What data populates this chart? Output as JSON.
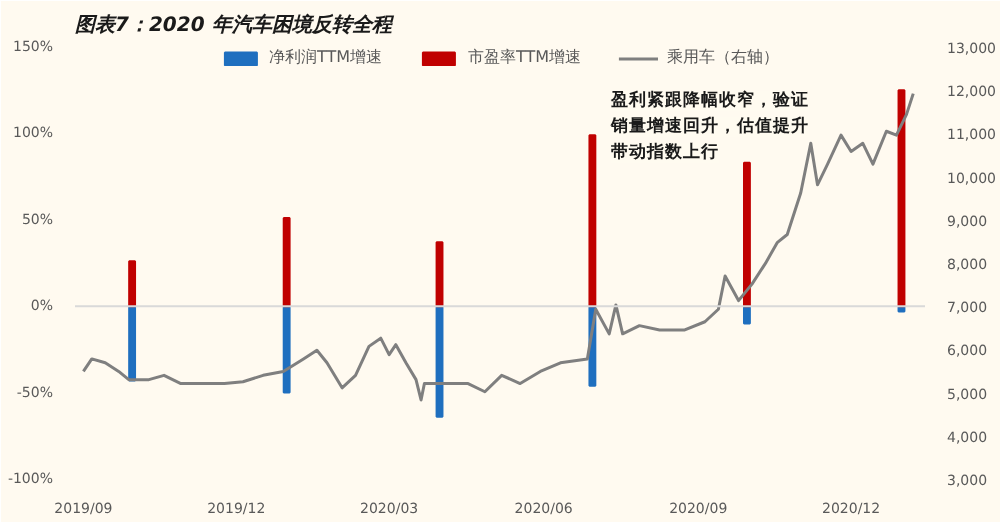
{
  "chart_data": {
    "type": "bar",
    "title": "图表7：2020 年汽车困境反转全程",
    "series": [
      {
        "name": "净利润TTM增速",
        "color": "#1f6fbf",
        "x": [
          "2019-09-30",
          "2019-12-31",
          "2020-03-31",
          "2020-06-30",
          "2020-09-30",
          "2020-12-31"
        ],
        "values": [
          -43,
          -50,
          -64,
          -46,
          -10,
          -3
        ]
      },
      {
        "name": "市盈率TTM增速",
        "color": "#c00000",
        "x": [
          "2019-09-30",
          "2019-12-31",
          "2020-03-31",
          "2020-06-30",
          "2020-09-30",
          "2020-12-31"
        ],
        "values": [
          26,
          51,
          37,
          99,
          83,
          125
        ]
      },
      {
        "name": "乘用车（右轴）",
        "color": "#7f7f7f",
        "type": "line",
        "axis": "y2",
        "x": [
          "2019-09-01",
          "2019-09-06",
          "2019-09-14",
          "2019-09-22",
          "2019-09-28",
          "2019-10-10",
          "2019-10-19",
          "2019-10-29",
          "2019-11-12",
          "2019-11-24",
          "2019-12-05",
          "2019-12-17",
          "2019-12-29",
          "2020-01-10",
          "2020-01-18",
          "2020-01-24",
          "2020-02-02",
          "2020-02-10",
          "2020-02-18",
          "2020-02-25",
          "2020-03-01",
          "2020-03-05",
          "2020-03-11",
          "2020-03-17",
          "2020-03-20",
          "2020-03-22",
          "2020-03-28",
          "2020-04-05",
          "2020-04-17",
          "2020-04-27",
          "2020-05-07",
          "2020-05-18",
          "2020-05-30",
          "2020-06-11",
          "2020-06-27",
          "2020-07-02",
          "2020-07-10",
          "2020-07-14",
          "2020-07-18",
          "2020-07-28",
          "2020-08-09",
          "2020-08-24",
          "2020-09-05",
          "2020-09-13",
          "2020-09-17",
          "2020-09-25",
          "2020-10-03",
          "2020-10-11",
          "2020-10-18",
          "2020-10-24",
          "2020-11-01",
          "2020-11-07",
          "2020-11-11",
          "2020-11-17",
          "2020-11-25",
          "2020-12-01",
          "2020-12-08",
          "2020-12-14",
          "2020-12-22",
          "2020-12-28",
          "2021-01-03",
          "2021-01-07"
        ],
        "values": [
          5490,
          5780,
          5690,
          5490,
          5300,
          5300,
          5400,
          5210,
          5210,
          5210,
          5250,
          5400,
          5490,
          5780,
          5980,
          5690,
          5110,
          5400,
          6070,
          6260,
          5880,
          6110,
          5690,
          5300,
          4830,
          5210,
          5210,
          5210,
          5210,
          5020,
          5400,
          5210,
          5490,
          5690,
          5780,
          6930,
          6360,
          7030,
          6360,
          6550,
          6450,
          6450,
          6640,
          6930,
          7700,
          7130,
          7510,
          7990,
          8470,
          8660,
          9620,
          10770,
          9810,
          10290,
          10960,
          10580,
          10770,
          10290,
          11050,
          10960,
          11440,
          11920
        ]
      }
    ],
    "xlim": [
      "2019-08-27",
      "2021-01-14"
    ],
    "xticks": [
      {
        "value": "2019-09-01",
        "label": "2019/09"
      },
      {
        "value": "2019-12-01",
        "label": "2019/12"
      },
      {
        "value": "2020-03-01",
        "label": "2020/03"
      },
      {
        "value": "2020-06-01",
        "label": "2020/06"
      },
      {
        "value": "2020-09-01",
        "label": "2020/09"
      },
      {
        "value": "2020-12-01",
        "label": "2020/12"
      }
    ],
    "ylim": [
      -100,
      150
    ],
    "yticks": [
      {
        "value": -100,
        "label": "-100%"
      },
      {
        "value": -50,
        "label": "-50%"
      },
      {
        "value": 0,
        "label": "0%"
      },
      {
        "value": 50,
        "label": "50%"
      },
      {
        "value": 100,
        "label": "100%"
      },
      {
        "value": 150,
        "label": "150%"
      }
    ],
    "y2lim": [
      3000,
      13000
    ],
    "y2ticks": [
      {
        "value": 3000,
        "label": "3,000"
      },
      {
        "value": 4000,
        "label": "4,000"
      },
      {
        "value": 5000,
        "label": "5,000"
      },
      {
        "value": 6000,
        "label": "6,000"
      },
      {
        "value": 7000,
        "label": "7,000"
      },
      {
        "value": 8000,
        "label": "8,000"
      },
      {
        "value": 9000,
        "label": "9,000"
      },
      {
        "value": 10000,
        "label": "10,000"
      },
      {
        "value": 11000,
        "label": "11,000"
      },
      {
        "value": 12000,
        "label": "12,000"
      },
      {
        "value": 13000,
        "label": "13,000"
      }
    ],
    "ref_lines": [
      {
        "axis": "y",
        "value": 0,
        "label": null,
        "color": "#d9d9d9"
      }
    ],
    "annotations": [
      "盈利紧跟降幅收窄，验证",
      "销量增速回升，估值提升",
      "带动指数上行"
    ],
    "stacked": true,
    "legend": "top",
    "grid": false
  }
}
